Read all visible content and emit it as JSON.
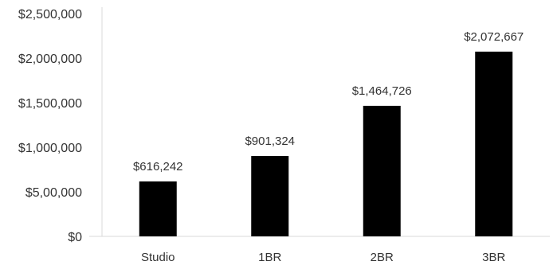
{
  "chart_data": {
    "type": "bar",
    "title": "",
    "xlabel": "",
    "ylabel": "",
    "categories": [
      "Studio",
      "1BR",
      "2BR",
      "3BR"
    ],
    "values": [
      616242,
      901324,
      1464726,
      2072667
    ],
    "data_labels": [
      "$616,242",
      "$901,324",
      "$1,464,726",
      "$2,072,667"
    ],
    "ylim": [
      0,
      2500000
    ],
    "yticks": [
      0,
      500000,
      1000000,
      1500000,
      2000000,
      2500000
    ],
    "ytick_labels": [
      "$0",
      "$5,00,000",
      "$1,000,000",
      "$1,500,000",
      "$2,000,000",
      "$2,500,000"
    ],
    "grid": false,
    "legend": "none",
    "bar_color": "#000000",
    "axis_color": "#d9d9d9"
  }
}
